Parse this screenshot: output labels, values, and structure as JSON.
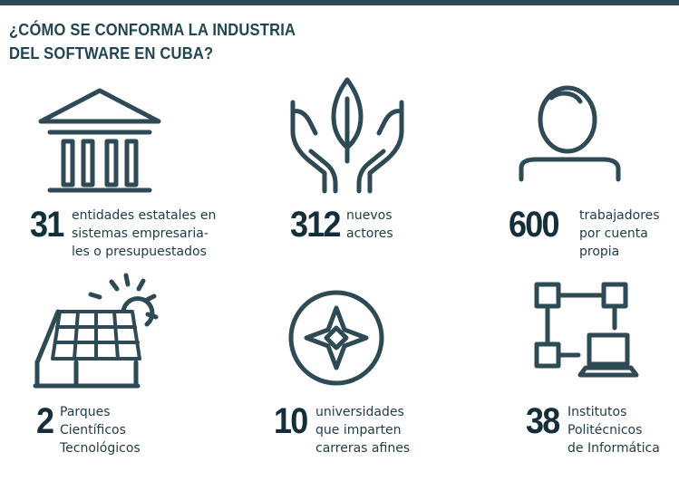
{
  "title": {
    "line1": "¿CÓMO SE CONFORMA LA INDUSTRIA",
    "line2": "DEL SOFTWARE EN CUBA?"
  },
  "accent_color": "#214552",
  "stats": [
    {
      "icon": "government-building-icon",
      "number": "31",
      "lines": [
        "entidades estatales en",
        "sistemas empresaria-",
        "les o presupuestados"
      ]
    },
    {
      "icon": "hands-sprout-icon",
      "number": "312",
      "lines": [
        "nuevos",
        "actores"
      ]
    },
    {
      "icon": "person-icon",
      "number": "600",
      "lines": [
        "trabajadores",
        "por cuenta",
        "propia"
      ]
    },
    {
      "icon": "solar-panel-house-icon",
      "number": "2",
      "lines": [
        "Parques",
        "Científicos",
        "Tecnológicos"
      ]
    },
    {
      "icon": "compass-star-icon",
      "number": "10",
      "lines": [
        "universidades",
        "que imparten",
        "carreras afines"
      ]
    },
    {
      "icon": "network-laptop-icon",
      "number": "38",
      "lines": [
        "Institutos",
        "Politécnicos",
        "de Informática"
      ]
    }
  ]
}
